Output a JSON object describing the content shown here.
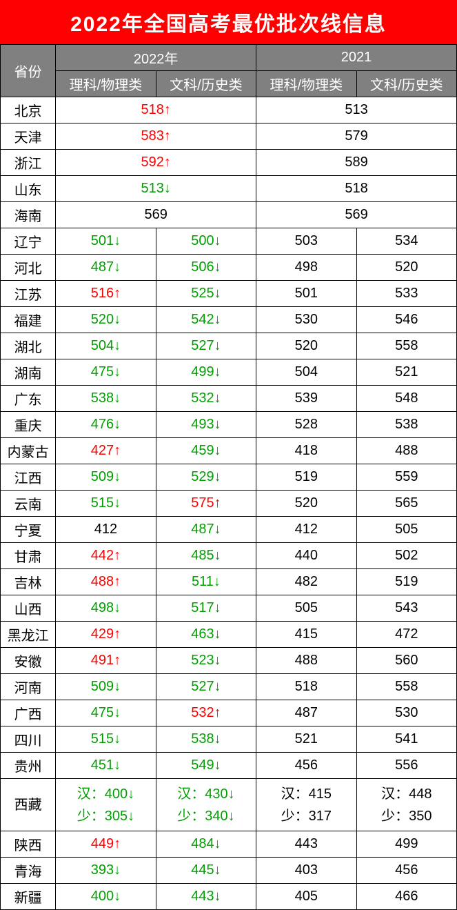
{
  "title": "2022年全国高考最优批次线信息",
  "colors": {
    "title_bg": "#ff0000",
    "title_fg": "#ffffff",
    "header_bg": "#808080",
    "header_fg": "#ffffff",
    "border": "#000000",
    "up": "#ff0000",
    "down": "#00a000",
    "neutral": "#000000"
  },
  "header": {
    "province": "省份",
    "year_2022": "2022年",
    "year_2021": "2021",
    "sci": "理科/物理类",
    "lib": "文科/历史类"
  },
  "arrows": {
    "up": "↑",
    "down": "↓"
  },
  "merged_rows": [
    {
      "province": "北京",
      "v22": "518",
      "trend22": "up",
      "v21": "513"
    },
    {
      "province": "天津",
      "v22": "583",
      "trend22": "up",
      "v21": "579"
    },
    {
      "province": "浙江",
      "v22": "592",
      "trend22": "up",
      "v21": "589"
    },
    {
      "province": "山东",
      "v22": "513",
      "trend22": "down",
      "v21": "518"
    },
    {
      "province": "海南",
      "v22": "569",
      "trend22": "neutral",
      "v21": "569"
    }
  ],
  "split_rows": [
    {
      "province": "辽宁",
      "s22": "501",
      "s22t": "down",
      "l22": "500",
      "l22t": "down",
      "s21": "503",
      "l21": "534"
    },
    {
      "province": "河北",
      "s22": "487",
      "s22t": "down",
      "l22": "506",
      "l22t": "down",
      "s21": "498",
      "l21": "520"
    },
    {
      "province": "江苏",
      "s22": "516",
      "s22t": "up",
      "l22": "525",
      "l22t": "down",
      "s21": "501",
      "l21": "533"
    },
    {
      "province": "福建",
      "s22": "520",
      "s22t": "down",
      "l22": "542",
      "l22t": "down",
      "s21": "530",
      "l21": "546"
    },
    {
      "province": "湖北",
      "s22": "504",
      "s22t": "down",
      "l22": "527",
      "l22t": "down",
      "s21": "520",
      "l21": "558"
    },
    {
      "province": "湖南",
      "s22": "475",
      "s22t": "down",
      "l22": "499",
      "l22t": "down",
      "s21": "504",
      "l21": "521"
    },
    {
      "province": "广东",
      "s22": "538",
      "s22t": "down",
      "l22": "532",
      "l22t": "down",
      "s21": "539",
      "l21": "548"
    },
    {
      "province": "重庆",
      "s22": "476",
      "s22t": "down",
      "l22": "493",
      "l22t": "down",
      "s21": "528",
      "l21": "538"
    },
    {
      "province": "内蒙古",
      "s22": "427",
      "s22t": "up",
      "l22": "459",
      "l22t": "down",
      "s21": "418",
      "l21": "488"
    },
    {
      "province": "江西",
      "s22": "509",
      "s22t": "down",
      "l22": "529",
      "l22t": "down",
      "s21": "519",
      "l21": "559"
    },
    {
      "province": "云南",
      "s22": "515",
      "s22t": "down",
      "l22": "575",
      "l22t": "up",
      "s21": "520",
      "l21": "565"
    },
    {
      "province": "宁夏",
      "s22": "412",
      "s22t": "neutral",
      "l22": "487",
      "l22t": "down",
      "s21": "412",
      "l21": "505"
    },
    {
      "province": "甘肃",
      "s22": "442",
      "s22t": "up",
      "l22": "485",
      "l22t": "down",
      "s21": "440",
      "l21": "502"
    },
    {
      "province": "吉林",
      "s22": "488",
      "s22t": "up",
      "l22": "511",
      "l22t": "down",
      "s21": "482",
      "l21": "519"
    },
    {
      "province": "山西",
      "s22": "498",
      "s22t": "down",
      "l22": "517",
      "l22t": "down",
      "s21": "505",
      "l21": "543"
    },
    {
      "province": "黑龙江",
      "s22": "429",
      "s22t": "up",
      "l22": "463",
      "l22t": "down",
      "s21": "415",
      "l21": "472"
    },
    {
      "province": "安徽",
      "s22": "491",
      "s22t": "up",
      "l22": "523",
      "l22t": "down",
      "s21": "488",
      "l21": "560"
    },
    {
      "province": "河南",
      "s22": "509",
      "s22t": "down",
      "l22": "527",
      "l22t": "down",
      "s21": "518",
      "l21": "558"
    },
    {
      "province": "广西",
      "s22": "475",
      "s22t": "down",
      "l22": "532",
      "l22t": "up",
      "s21": "487",
      "l21": "530"
    },
    {
      "province": "四川",
      "s22": "515",
      "s22t": "down",
      "l22": "538",
      "l22t": "down",
      "s21": "521",
      "l21": "541"
    },
    {
      "province": "贵州",
      "s22": "451",
      "s22t": "down",
      "l22": "549",
      "l22t": "down",
      "s21": "456",
      "l21": "556"
    }
  ],
  "tibet": {
    "province": "西藏",
    "s22_han": "汉：400",
    "s22_han_t": "down",
    "s22_min": "少：305",
    "s22_min_t": "down",
    "l22_han": "汉：430",
    "l22_han_t": "down",
    "l22_min": "少：340",
    "l22_min_t": "down",
    "s21_han": "汉：415",
    "s21_min": "少：317",
    "l21_han": "汉：448",
    "l21_min": "少：350"
  },
  "tail_rows": [
    {
      "province": "陕西",
      "s22": "449",
      "s22t": "up",
      "l22": "484",
      "l22t": "down",
      "s21": "443",
      "l21": "499"
    },
    {
      "province": "青海",
      "s22": "393",
      "s22t": "down",
      "l22": "445",
      "l22t": "down",
      "s21": "403",
      "l21": "456"
    },
    {
      "province": "新疆",
      "s22": "400",
      "s22t": "down",
      "l22": "443",
      "l22t": "down",
      "s21": "405",
      "l21": "466"
    }
  ]
}
